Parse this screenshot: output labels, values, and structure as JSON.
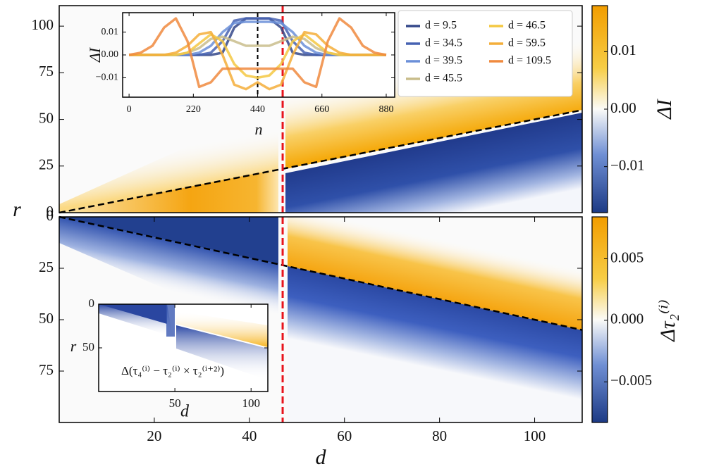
{
  "chart_data": [
    {
      "type": "heatmap",
      "y_label": "r",
      "colorbar_label": "ΔI",
      "xlim": [
        0,
        110
      ],
      "ylim": [
        0,
        111
      ],
      "yticks": [
        0,
        25,
        50,
        75,
        100
      ],
      "clim": [
        -0.018,
        0.018
      ],
      "cticks": [
        0.01,
        {
          "value": 0,
          "label": "0.00"
        },
        {
          "value": -0.01,
          "label": "−0.01"
        }
      ],
      "dashed_line": {
        "x": [
          0,
          110
        ],
        "y": [
          0,
          55
        ]
      },
      "marker_d": 47,
      "marker_color": "#e8141c"
    },
    {
      "type": "heatmap",
      "x_label": "d",
      "colorbar_label": "Δτ₂⁽ⁱ⁾",
      "xlim": [
        0,
        110
      ],
      "xticks": [
        20,
        40,
        60,
        80,
        100
      ],
      "ylim": [
        100,
        0
      ],
      "yticks": [
        0,
        25,
        50,
        75
      ],
      "clim": [
        -0.0083,
        0.0084
      ],
      "cticks": [
        0.005,
        {
          "value": 0,
          "label": "0.000"
        },
        {
          "value": -0.005,
          "label": "−0.005"
        }
      ],
      "dashed_line": {
        "x": [
          0,
          110
        ],
        "y": [
          0,
          55
        ]
      },
      "marker_d": 47,
      "marker_color": "#e8141c"
    },
    {
      "type": "line",
      "x_label": "n",
      "y_label": "ΔI",
      "legend": "upper right",
      "xlim": [
        -22,
        909
      ],
      "xticks": [
        0,
        220,
        440,
        660,
        880
      ],
      "ylim": [
        -0.0185,
        0.0185
      ],
      "yticks": [
        0.01,
        {
          "value": 0,
          "label": "0.00"
        },
        {
          "value": -0.01,
          "label": "−0.01"
        }
      ],
      "center_line": 440,
      "x": [
        0,
        40,
        80,
        120,
        160,
        200,
        240,
        280,
        320,
        360,
        400,
        440,
        480,
        520,
        560,
        600,
        640,
        680,
        720,
        760,
        800,
        840,
        880
      ],
      "series": [
        {
          "name": "d = 9.5",
          "color": "#34488a",
          "values": [
            0,
            0,
            0,
            0,
            0,
            0,
            0,
            0,
            0.001,
            0.012,
            0.016,
            0.016,
            0.016,
            0.012,
            0.001,
            0,
            0,
            0,
            0,
            0,
            0,
            0,
            0
          ]
        },
        {
          "name": "d = 34.5",
          "color": "#4662b2",
          "values": [
            0,
            0,
            0,
            0,
            0,
            0,
            0,
            0.001,
            0.006,
            0.015,
            0.016,
            0.016,
            0.016,
            0.015,
            0.006,
            0.001,
            0,
            0,
            0,
            0,
            0,
            0,
            0
          ]
        },
        {
          "name": "d = 39.5",
          "color": "#6b8fd8",
          "values": [
            0,
            0,
            0,
            0,
            0,
            0,
            0.001,
            0.004,
            0.01,
            0.014,
            0.0145,
            0.0145,
            0.0145,
            0.014,
            0.01,
            0.004,
            0.001,
            0,
            0,
            0,
            0,
            0,
            0
          ]
        },
        {
          "name": "d = 45.5",
          "color": "#c9bd8c",
          "values": [
            0,
            0,
            0,
            0,
            0,
            0.001,
            0.003,
            0.007,
            0.008,
            0.006,
            0.004,
            0.004,
            0.004,
            0.006,
            0.008,
            0.007,
            0.003,
            0.001,
            0,
            0,
            0,
            0,
            0
          ]
        },
        {
          "name": "d = 46.5",
          "color": "#f4c842",
          "values": [
            0,
            0,
            0,
            0,
            0,
            0.001,
            0.005,
            0.009,
            0.006,
            -0.004,
            -0.009,
            -0.01,
            -0.009,
            -0.004,
            0.006,
            0.009,
            0.005,
            0.001,
            0,
            0,
            0,
            0,
            0
          ]
        },
        {
          "name": "d = 59.5",
          "color": "#f4ae3a",
          "values": [
            0,
            0,
            0,
            0,
            0.001,
            0.004,
            0.009,
            0.01,
            0,
            -0.013,
            -0.015,
            -0.012,
            -0.015,
            -0.013,
            0,
            0.01,
            0.009,
            0.004,
            0.001,
            0,
            0,
            0,
            0
          ]
        },
        {
          "name": "d = 109.5",
          "color": "#f08a3e",
          "values": [
            0,
            0.001,
            0.004,
            0.012,
            0.016,
            0.006,
            -0.014,
            -0.012,
            -0.006,
            -0.006,
            -0.006,
            -0.006,
            -0.006,
            -0.006,
            -0.006,
            -0.012,
            -0.014,
            0.006,
            0.016,
            0.012,
            0.004,
            0.001,
            0
          ]
        }
      ]
    },
    {
      "type": "heatmap",
      "x_label": "d",
      "y_label": "r",
      "annotation": "Δ(τ₄⁽ⁱ⁾ − τ₂⁽ⁱ⁾ × τ₂⁽ⁱ⁺²⁾)",
      "xlim": [
        0,
        111
      ],
      "xticks": [
        50,
        100
      ],
      "ylim": [
        100,
        0
      ],
      "yticks": [
        0,
        50
      ]
    }
  ]
}
